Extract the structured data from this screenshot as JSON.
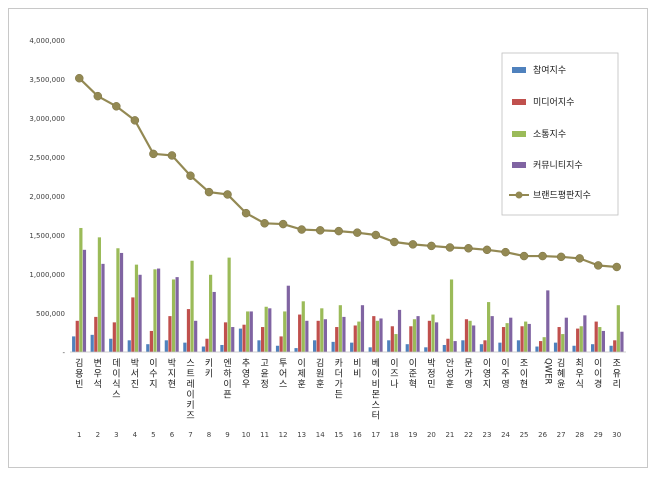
{
  "chart_data": {
    "type": "bar",
    "title": "",
    "xlabel": "",
    "ylabel": "",
    "ylim": [
      0,
      4000000
    ],
    "y_ticks": [
      "-",
      "500,000",
      "1,000,000",
      "1,500,000",
      "2,000,000",
      "2,500,000",
      "3,000,000",
      "3,500,000",
      "4,000,000"
    ],
    "grid": false,
    "legend_position": "right",
    "ranks": [
      "1",
      "2",
      "3",
      "4",
      "5",
      "6",
      "7",
      "8",
      "9",
      "10",
      "11",
      "12",
      "13",
      "14",
      "15",
      "16",
      "17",
      "18",
      "19",
      "20",
      "21",
      "22",
      "23",
      "24",
      "25",
      "26",
      "27",
      "28",
      "29",
      "30"
    ],
    "categories": [
      "김용빈",
      "변우석",
      "데이식스",
      "박서진",
      "이수지",
      "박지현",
      "스트레이키즈",
      "키키",
      "엔하이픈",
      "추영우",
      "고윤정",
      "투어스",
      "이제훈",
      "김원훈",
      "카더가든",
      "비비",
      "베이비몬스터",
      "이즈나",
      "이준혁",
      "박정민",
      "안성훈",
      "문가영",
      "이영지",
      "이주영",
      "조이현",
      "QWER",
      "김혜윤",
      "최우식",
      "이이경",
      "조유리"
    ],
    "series": [
      {
        "name": "참여지수",
        "color": "#4f81bd",
        "values": [
          200000,
          220000,
          170000,
          150000,
          100000,
          150000,
          120000,
          70000,
          90000,
          300000,
          150000,
          80000,
          50000,
          150000,
          130000,
          120000,
          60000,
          150000,
          100000,
          60000,
          90000,
          150000,
          100000,
          120000,
          150000,
          70000,
          120000,
          80000,
          100000,
          80000
        ]
      },
      {
        "name": "미디어지수",
        "color": "#c0504d",
        "values": [
          400000,
          450000,
          380000,
          700000,
          270000,
          460000,
          550000,
          170000,
          380000,
          350000,
          320000,
          200000,
          480000,
          400000,
          320000,
          340000,
          460000,
          330000,
          330000,
          400000,
          170000,
          420000,
          150000,
          320000,
          330000,
          140000,
          320000,
          300000,
          390000,
          150000
        ]
      },
      {
        "name": "소통지수",
        "color": "#9bbb59",
        "values": [
          1590000,
          1470000,
          1330000,
          1120000,
          1060000,
          930000,
          1170000,
          990000,
          1210000,
          520000,
          580000,
          520000,
          650000,
          560000,
          600000,
          390000,
          400000,
          230000,
          420000,
          480000,
          930000,
          400000,
          640000,
          370000,
          390000,
          190000,
          230000,
          330000,
          320000,
          600000
        ]
      },
      {
        "name": "커뮤니티지수",
        "color": "#8064a2",
        "values": [
          1310000,
          1130000,
          1270000,
          990000,
          1070000,
          960000,
          400000,
          770000,
          320000,
          520000,
          560000,
          850000,
          400000,
          420000,
          450000,
          600000,
          430000,
          540000,
          460000,
          380000,
          140000,
          340000,
          460000,
          440000,
          360000,
          790000,
          440000,
          470000,
          270000,
          260000
        ]
      }
    ],
    "line": {
      "name": "브랜드평판지수",
      "color": "#938953",
      "values": [
        3510000,
        3280000,
        3150000,
        2970000,
        2540000,
        2520000,
        2260000,
        2050000,
        2020000,
        1780000,
        1650000,
        1640000,
        1570000,
        1560000,
        1550000,
        1530000,
        1500000,
        1410000,
        1380000,
        1360000,
        1340000,
        1330000,
        1310000,
        1280000,
        1230000,
        1230000,
        1220000,
        1200000,
        1110000,
        1090000
      ]
    }
  }
}
